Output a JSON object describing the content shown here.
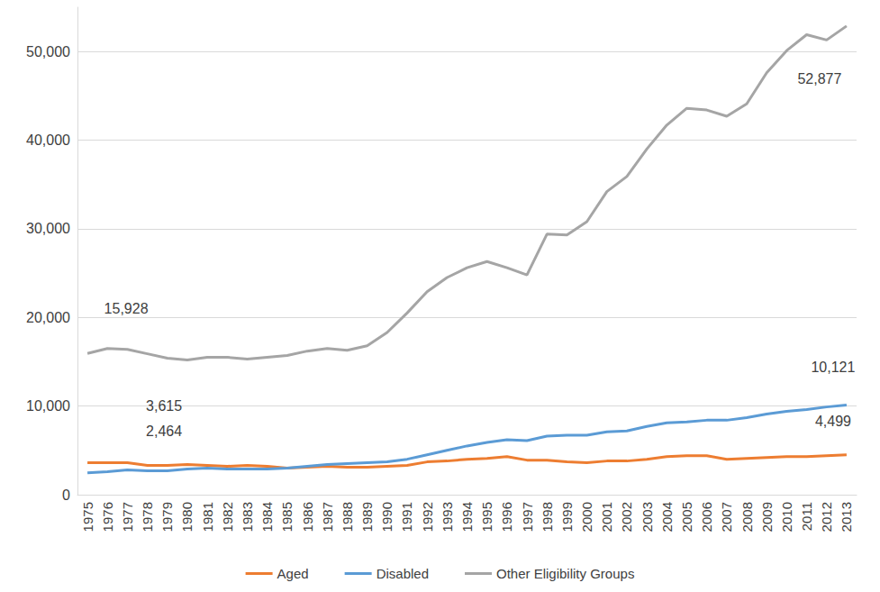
{
  "chart_data": {
    "type": "line",
    "categories": [
      "1975",
      "1976",
      "1977",
      "1978",
      "1979",
      "1980",
      "1981",
      "1982",
      "1983",
      "1984",
      "1985",
      "1986",
      "1987",
      "1988",
      "1989",
      "1990",
      "1991",
      "1992",
      "1993",
      "1994",
      "1995",
      "1996",
      "1997",
      "1998",
      "1999",
      "2000",
      "2001",
      "2002",
      "2003",
      "2004",
      "2005",
      "2006",
      "2007",
      "2008",
      "2009",
      "2010",
      "2011",
      "2012",
      "2013"
    ],
    "series": [
      {
        "name": "Aged",
        "color": "#ED7D31",
        "values": [
          3615,
          3600,
          3600,
          3300,
          3300,
          3400,
          3300,
          3200,
          3300,
          3200,
          3000,
          3100,
          3200,
          3100,
          3100,
          3200,
          3300,
          3700,
          3800,
          4000,
          4100,
          4300,
          3900,
          3900,
          3700,
          3600,
          3800,
          3800,
          4000,
          4300,
          4400,
          4400,
          4000,
          4100,
          4200,
          4300,
          4300,
          4400,
          4499
        ]
      },
      {
        "name": "Disabled",
        "color": "#5B9BD5",
        "values": [
          2464,
          2600,
          2800,
          2700,
          2700,
          2900,
          3000,
          2900,
          2900,
          2900,
          3000,
          3200,
          3400,
          3500,
          3600,
          3700,
          4000,
          4500,
          5000,
          5500,
          5900,
          6200,
          6100,
          6600,
          6700,
          6700,
          7100,
          7200,
          7700,
          8100,
          8200,
          8400,
          8400,
          8700,
          9100,
          9400,
          9600,
          9900,
          10121
        ]
      },
      {
        "name": "Other Eligibility Groups",
        "color": "#A5A5A5",
        "values": [
          15928,
          16500,
          16400,
          15900,
          15400,
          15200,
          15500,
          15500,
          15300,
          15500,
          15700,
          16200,
          16500,
          16300,
          16800,
          18300,
          20500,
          22900,
          24500,
          25600,
          26300,
          25600,
          24800,
          29400,
          29300,
          30800,
          34200,
          35900,
          39000,
          41700,
          43600,
          43400,
          42700,
          44100,
          47600,
          50100,
          51900,
          51300,
          52877
        ]
      }
    ],
    "annotations": [
      {
        "text": "15,928",
        "series": "Other Eligibility Groups",
        "x": "1975"
      },
      {
        "text": "3,615",
        "series": "Aged",
        "x": "1975"
      },
      {
        "text": "2,464",
        "series": "Disabled",
        "x": "1975"
      },
      {
        "text": "52,877",
        "series": "Other Eligibility Groups",
        "x": "2013"
      },
      {
        "text": "10,121",
        "series": "Disabled",
        "x": "2013"
      },
      {
        "text": "4,499",
        "series": "Aged",
        "x": "2013"
      }
    ],
    "ylim": [
      0,
      55000
    ],
    "yticks": [
      0,
      {
        "value": 10000,
        "label": "10,000"
      },
      {
        "value": 20000,
        "label": "20,000"
      },
      {
        "value": 30000,
        "label": "30,000"
      },
      {
        "value": 40000,
        "label": "40,000"
      },
      {
        "value": 50000,
        "label": "50,000"
      }
    ],
    "grid": true,
    "legend": "bottom"
  }
}
